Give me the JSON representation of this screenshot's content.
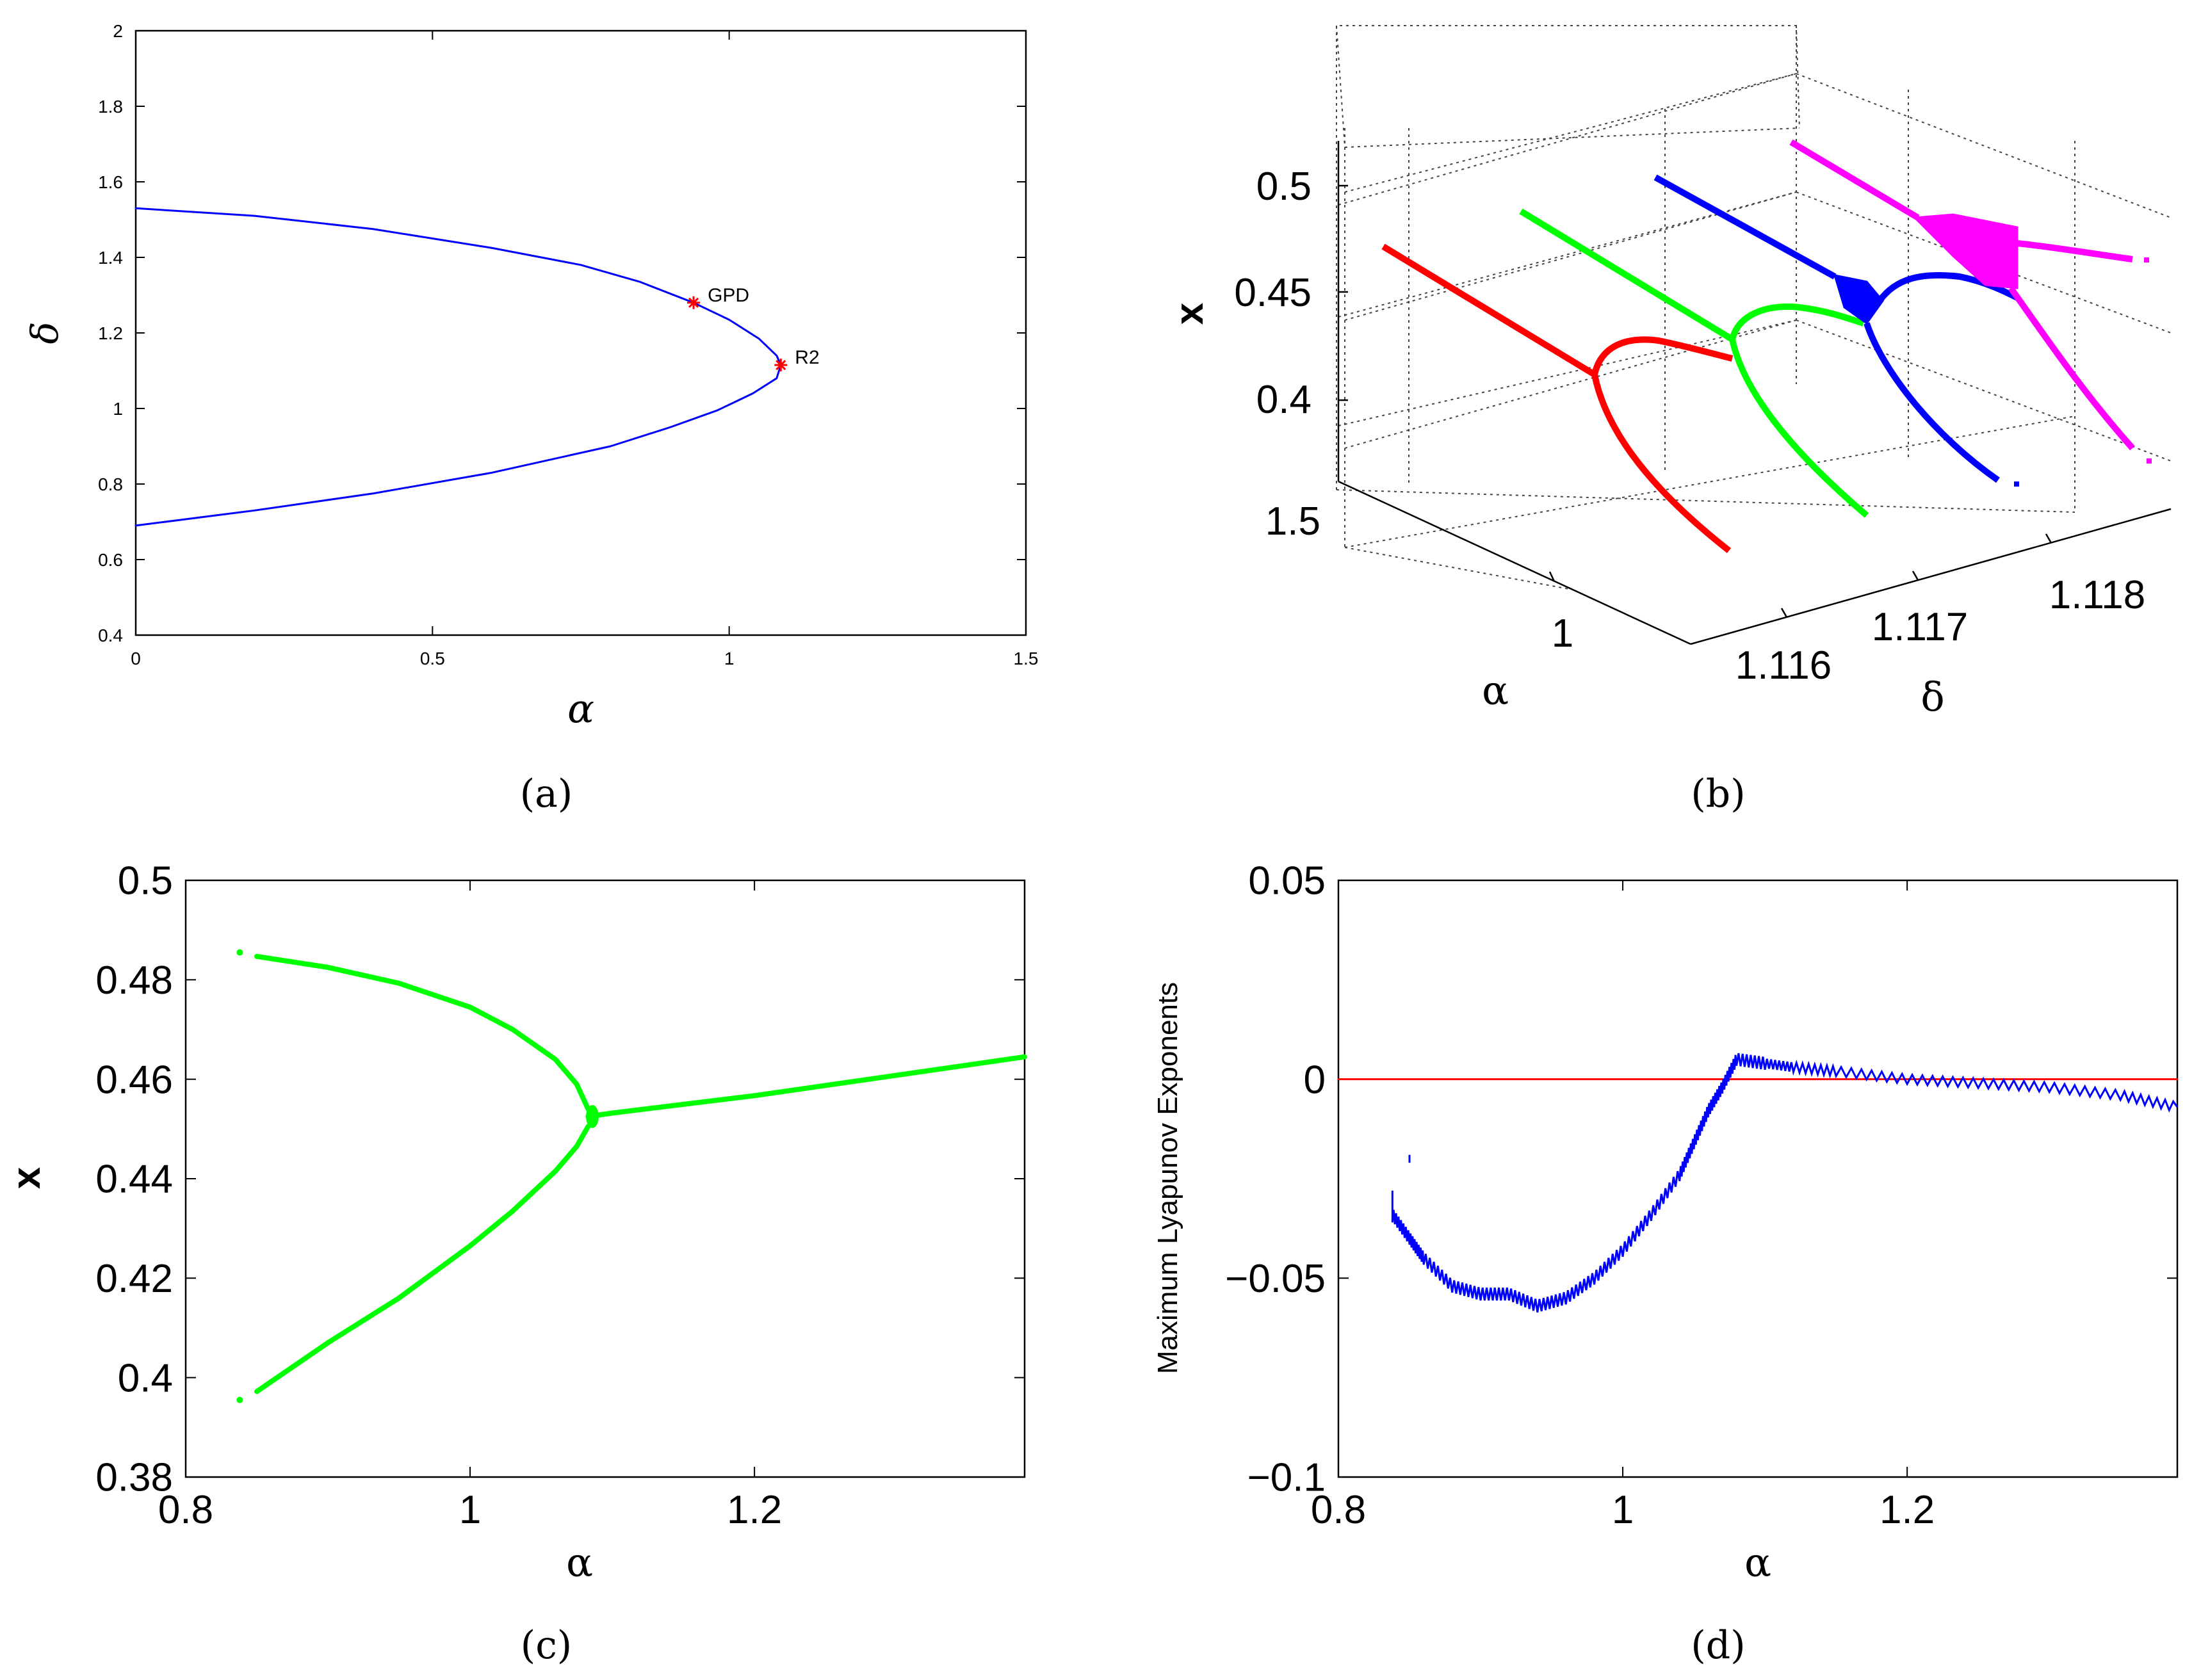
{
  "figure": {
    "panels": [
      "a",
      "b",
      "c",
      "d"
    ],
    "captions": [
      "(a)",
      "(b)",
      "(c)",
      "(d)"
    ]
  },
  "chart_data": [
    {
      "id": "a",
      "type": "line",
      "title": "",
      "xlabel": "α",
      "ylabel": "δ",
      "xlim": [
        0,
        1.5
      ],
      "ylim": [
        0.4,
        2
      ],
      "xticks": [
        0,
        0.5,
        1,
        1.5
      ],
      "xtick_labels": [
        "0",
        "0.5",
        "1",
        "1.5"
      ],
      "yticks": [
        0.4,
        0.6,
        0.8,
        1,
        1.2,
        1.4,
        1.6,
        1.8,
        2
      ],
      "ytick_labels": [
        "0.4",
        "0.6",
        "0.8",
        "1",
        "1.2",
        "1.4",
        "1.6",
        "1.8",
        "2"
      ],
      "series": [
        {
          "name": "bifurcation curve",
          "color": "#0000ff",
          "x": [
            0,
            0.2,
            0.4,
            0.6,
            0.75,
            0.85,
            0.94,
            1.0,
            1.05,
            1.08,
            1.087,
            1.08,
            1.04,
            0.98,
            0.9,
            0.8,
            0.6,
            0.4,
            0.2,
            0
          ],
          "y": [
            1.53,
            1.51,
            1.475,
            1.425,
            1.38,
            1.335,
            1.28,
            1.235,
            1.185,
            1.14,
            1.115,
            1.08,
            1.04,
            0.995,
            0.95,
            0.9,
            0.83,
            0.775,
            0.73,
            0.69
          ]
        }
      ],
      "points": [
        {
          "label": "GPD",
          "x": 0.94,
          "y": 1.28,
          "color": "#ff0000"
        },
        {
          "label": "R2",
          "x": 1.087,
          "y": 1.115,
          "color": "#ff0000"
        }
      ]
    },
    {
      "id": "b",
      "type": "scatter",
      "title": "",
      "xlabel": "α",
      "ylabel": "x",
      "zlabel": "δ",
      "x_tick_labels": [
        "1.5",
        "1"
      ],
      "y_tick_labels": [
        "0.4",
        "0.45",
        "0.5"
      ],
      "z_tick_labels": [
        "1.116",
        "1.117",
        "1.118"
      ],
      "series": [
        {
          "name": "δ slice 1",
          "color": "#ff0000"
        },
        {
          "name": "δ slice 2",
          "color": "#00ff00"
        },
        {
          "name": "δ slice 3",
          "color": "#0000ff"
        },
        {
          "name": "δ slice 4",
          "color": "#ff00ff"
        }
      ]
    },
    {
      "id": "c",
      "type": "scatter",
      "title": "",
      "xlabel": "α",
      "ylabel": "x",
      "xlim": [
        0.8,
        1.39
      ],
      "ylim": [
        0.38,
        0.5
      ],
      "xticks": [
        0.8,
        1,
        1.2
      ],
      "xtick_labels": [
        "0.8",
        "1",
        "1.2"
      ],
      "yticks": [
        0.38,
        0.4,
        0.42,
        0.44,
        0.46,
        0.48,
        0.5
      ],
      "ytick_labels": [
        "0.38",
        "0.4",
        "0.42",
        "0.44",
        "0.46",
        "0.48",
        "0.5"
      ],
      "series": [
        {
          "name": "upper branch",
          "color": "#00ff00",
          "x": [
            0.85,
            0.9,
            0.95,
            1.0,
            1.03,
            1.06,
            1.075,
            1.083
          ],
          "y": [
            0.4847,
            0.4825,
            0.4793,
            0.4745,
            0.47,
            0.464,
            0.459,
            0.454
          ]
        },
        {
          "name": "lower branch",
          "color": "#00ff00",
          "x": [
            0.85,
            0.9,
            0.95,
            1.0,
            1.03,
            1.06,
            1.075,
            1.083
          ],
          "y": [
            0.3972,
            0.407,
            0.416,
            0.4265,
            0.4335,
            0.4415,
            0.4465,
            0.4505
          ]
        },
        {
          "name": "single branch",
          "color": "#00ff00",
          "x": [
            1.083,
            1.1,
            1.2,
            1.3,
            1.39
          ],
          "y": [
            0.4525,
            0.4532,
            0.4567,
            0.4608,
            0.4645
          ]
        }
      ]
    },
    {
      "id": "d",
      "type": "line",
      "title": "",
      "xlabel": "α",
      "ylabel": "Maximum Lyapunov Exponents",
      "xlim": [
        0.8,
        1.39
      ],
      "ylim": [
        -0.1,
        0.05
      ],
      "xticks": [
        0.8,
        1,
        1.2
      ],
      "xtick_labels": [
        "0.8",
        "1",
        "1.2"
      ],
      "yticks": [
        -0.1,
        -0.05,
        0,
        0.05
      ],
      "ytick_labels": [
        "−0.1",
        "−0.05",
        "0",
        "0.05"
      ],
      "series": [
        {
          "name": "MLE",
          "color": "#0000ff",
          "x": [
            0.838,
            0.85,
            0.86,
            0.88,
            0.9,
            0.92,
            0.94,
            0.96,
            0.98,
            1.0,
            1.02,
            1.04,
            1.05,
            1.06,
            1.07,
            1.08,
            1.1,
            1.12,
            1.15,
            1.2,
            1.25,
            1.3,
            1.35,
            1.39
          ],
          "y": [
            -0.034,
            -0.04,
            -0.045,
            -0.052,
            -0.054,
            -0.054,
            -0.057,
            -0.055,
            -0.05,
            -0.043,
            -0.034,
            -0.024,
            -0.016,
            -0.008,
            -0.002,
            0.005,
            0.004,
            0.003,
            0.002,
            0.0,
            -0.001,
            -0.002,
            -0.004,
            -0.007
          ]
        },
        {
          "name": "zero line",
          "color": "#ff0000",
          "x": [
            0.8,
            1.39
          ],
          "y": [
            0,
            0
          ]
        }
      ]
    }
  ]
}
